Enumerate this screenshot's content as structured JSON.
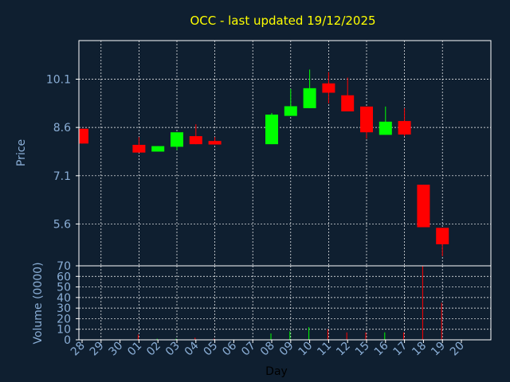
{
  "chart_data": {
    "type": "candlestick",
    "title": "OCC - last updated 19/12/2025",
    "xlabel": "Day",
    "ylabel_price": "Price",
    "ylabel_volume": "Volume (0000)",
    "x_ticks": [
      "28",
      "29",
      "30",
      "01",
      "02",
      "03",
      "04",
      "05",
      "06",
      "07",
      "08",
      "09",
      "10",
      "11",
      "12",
      "15",
      "16",
      "17",
      "18",
      "19",
      "20"
    ],
    "price_ticks": [
      "10.1",
      "8.6",
      "7.1",
      "5.6"
    ],
    "volume_ticks": [
      "70",
      "60",
      "50",
      "40",
      "30",
      "20",
      "10",
      "0"
    ],
    "grid": true,
    "colors": {
      "up": "#00ff00",
      "down": "#ff0000",
      "title": "#ffff00",
      "axis_text": "#8aaed6",
      "background": "#0f1f30",
      "frame": "#ffffff"
    },
    "price_range": [
      4.3,
      11.3
    ],
    "volume_range": [
      0,
      70
    ],
    "candles": [
      {
        "day": "28",
        "open": 8.56,
        "close": 8.1,
        "high": 8.56,
        "low": 8.1,
        "volume": 0
      },
      {
        "day": "01",
        "open": 8.06,
        "close": 7.82,
        "high": 8.3,
        "low": 7.82,
        "volume": 5
      },
      {
        "day": "02",
        "open": 7.85,
        "close": 8.02,
        "high": 8.02,
        "low": 7.85,
        "volume": 1
      },
      {
        "day": "03",
        "open": 8.0,
        "close": 8.45,
        "high": 8.45,
        "low": 7.9,
        "volume": 1
      },
      {
        "day": "04",
        "open": 8.33,
        "close": 8.08,
        "high": 8.7,
        "low": 8.08,
        "volume": 2
      },
      {
        "day": "05",
        "open": 8.18,
        "close": 8.07,
        "high": 8.3,
        "low": 8.07,
        "volume": 1
      },
      {
        "day": "08",
        "open": 8.08,
        "close": 9.0,
        "high": 9.05,
        "low": 8.08,
        "volume": 6
      },
      {
        "day": "09",
        "open": 8.96,
        "close": 9.26,
        "high": 9.8,
        "low": 8.96,
        "volume": 8
      },
      {
        "day": "10",
        "open": 9.2,
        "close": 9.82,
        "high": 10.4,
        "low": 9.2,
        "volume": 12
      },
      {
        "day": "11",
        "open": 9.97,
        "close": 9.68,
        "high": 10.32,
        "low": 9.35,
        "volume": 10
      },
      {
        "day": "12",
        "open": 9.6,
        "close": 9.1,
        "high": 10.15,
        "low": 9.1,
        "volume": 7
      },
      {
        "day": "15",
        "open": 9.25,
        "close": 8.45,
        "high": 9.25,
        "low": 8.25,
        "volume": 7
      },
      {
        "day": "16",
        "open": 8.37,
        "close": 8.78,
        "high": 9.25,
        "low": 8.37,
        "volume": 7
      },
      {
        "day": "17",
        "open": 8.8,
        "close": 8.38,
        "high": 9.2,
        "low": 8.33,
        "volume": 7
      },
      {
        "day": "18",
        "open": 6.82,
        "close": 5.5,
        "high": 6.82,
        "low": 5.5,
        "volume": 70
      },
      {
        "day": "19",
        "open": 5.48,
        "close": 4.97,
        "high": 5.48,
        "low": 4.6,
        "volume": 35
      }
    ]
  }
}
